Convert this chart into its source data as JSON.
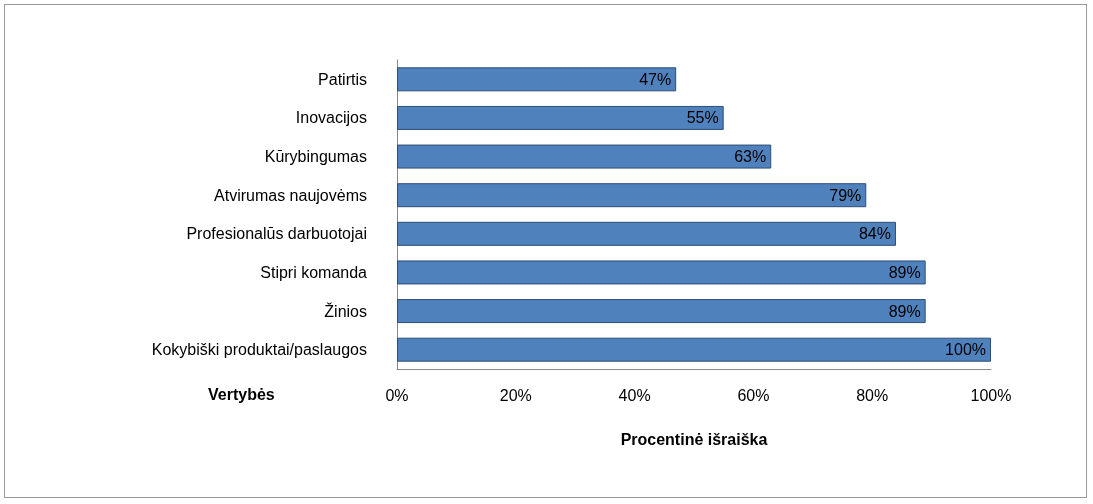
{
  "chart_data": {
    "type": "bar",
    "orientation": "horizontal",
    "categories": [
      "Patirtis",
      "Inovacijos",
      "Kūrybingumas",
      "Atvirumas naujovėms",
      "Profesionalūs darbuotojai",
      "Stipri komanda",
      "Žinios",
      "Kokybiški produktai/paslaugos"
    ],
    "values": [
      47,
      55,
      63,
      79,
      84,
      89,
      89,
      100
    ],
    "value_labels": [
      "47%",
      "55%",
      "63%",
      "79%",
      "84%",
      "89%",
      "89%",
      "100%"
    ],
    "color": "#4f81bd",
    "xlim": [
      0,
      100
    ],
    "xticks": [
      {
        "value": 0,
        "label": "0%"
      },
      {
        "value": 20,
        "label": "20%"
      },
      {
        "value": 40,
        "label": "40%"
      },
      {
        "value": 60,
        "label": "60%"
      },
      {
        "value": 80,
        "label": "80%"
      },
      {
        "value": 100,
        "label": "100%"
      }
    ],
    "xlabel": "Procentinė išraiška",
    "ylabel": "Vertybės",
    "grid": false
  }
}
